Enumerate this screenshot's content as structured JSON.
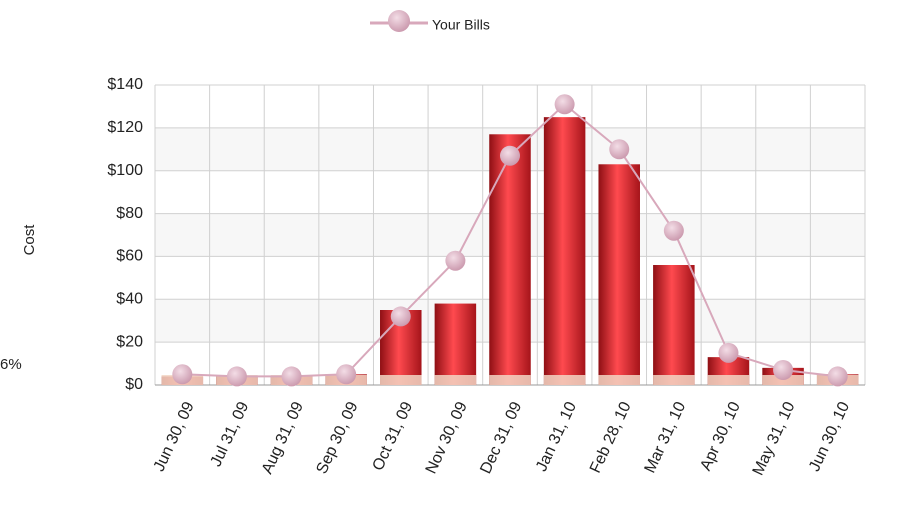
{
  "chart_data": {
    "type": "combo",
    "y_label": "Cost",
    "annotation": "6%",
    "categories": [
      "Jun 30, 09",
      "Jul 31, 09",
      "Aug 31, 09",
      "Sep 30, 09",
      "Oct 31, 09",
      "Nov 30, 09",
      "Dec 31, 09",
      "Jan 31, 10",
      "Feb 28, 10",
      "Mar 31, 10",
      "Apr 30, 10",
      "May 31, 10",
      "Jun 30, 10"
    ],
    "series": [
      {
        "type": "bar",
        "color": "#e0232b",
        "values": [
          4,
          4,
          4,
          5,
          35,
          38,
          117,
          125,
          103,
          56,
          13,
          8,
          5
        ]
      },
      {
        "type": "line",
        "name": "Your Bills",
        "color": "#d8a8bb",
        "values": [
          5,
          4,
          4,
          5,
          32,
          58,
          107,
          131,
          110,
          72,
          15,
          7,
          4
        ]
      }
    ],
    "ylim": [
      0,
      140
    ],
    "yticks": [
      {
        "value": 0,
        "label": "$0"
      },
      {
        "value": 20,
        "label": "$20"
      },
      {
        "value": 40,
        "label": "$40"
      },
      {
        "value": 60,
        "label": "$60"
      },
      {
        "value": 80,
        "label": "$80"
      },
      {
        "value": 100,
        "label": "$100"
      },
      {
        "value": 120,
        "label": "$120"
      },
      {
        "value": 140,
        "label": "$140"
      }
    ],
    "grid": true,
    "legend": "top"
  }
}
